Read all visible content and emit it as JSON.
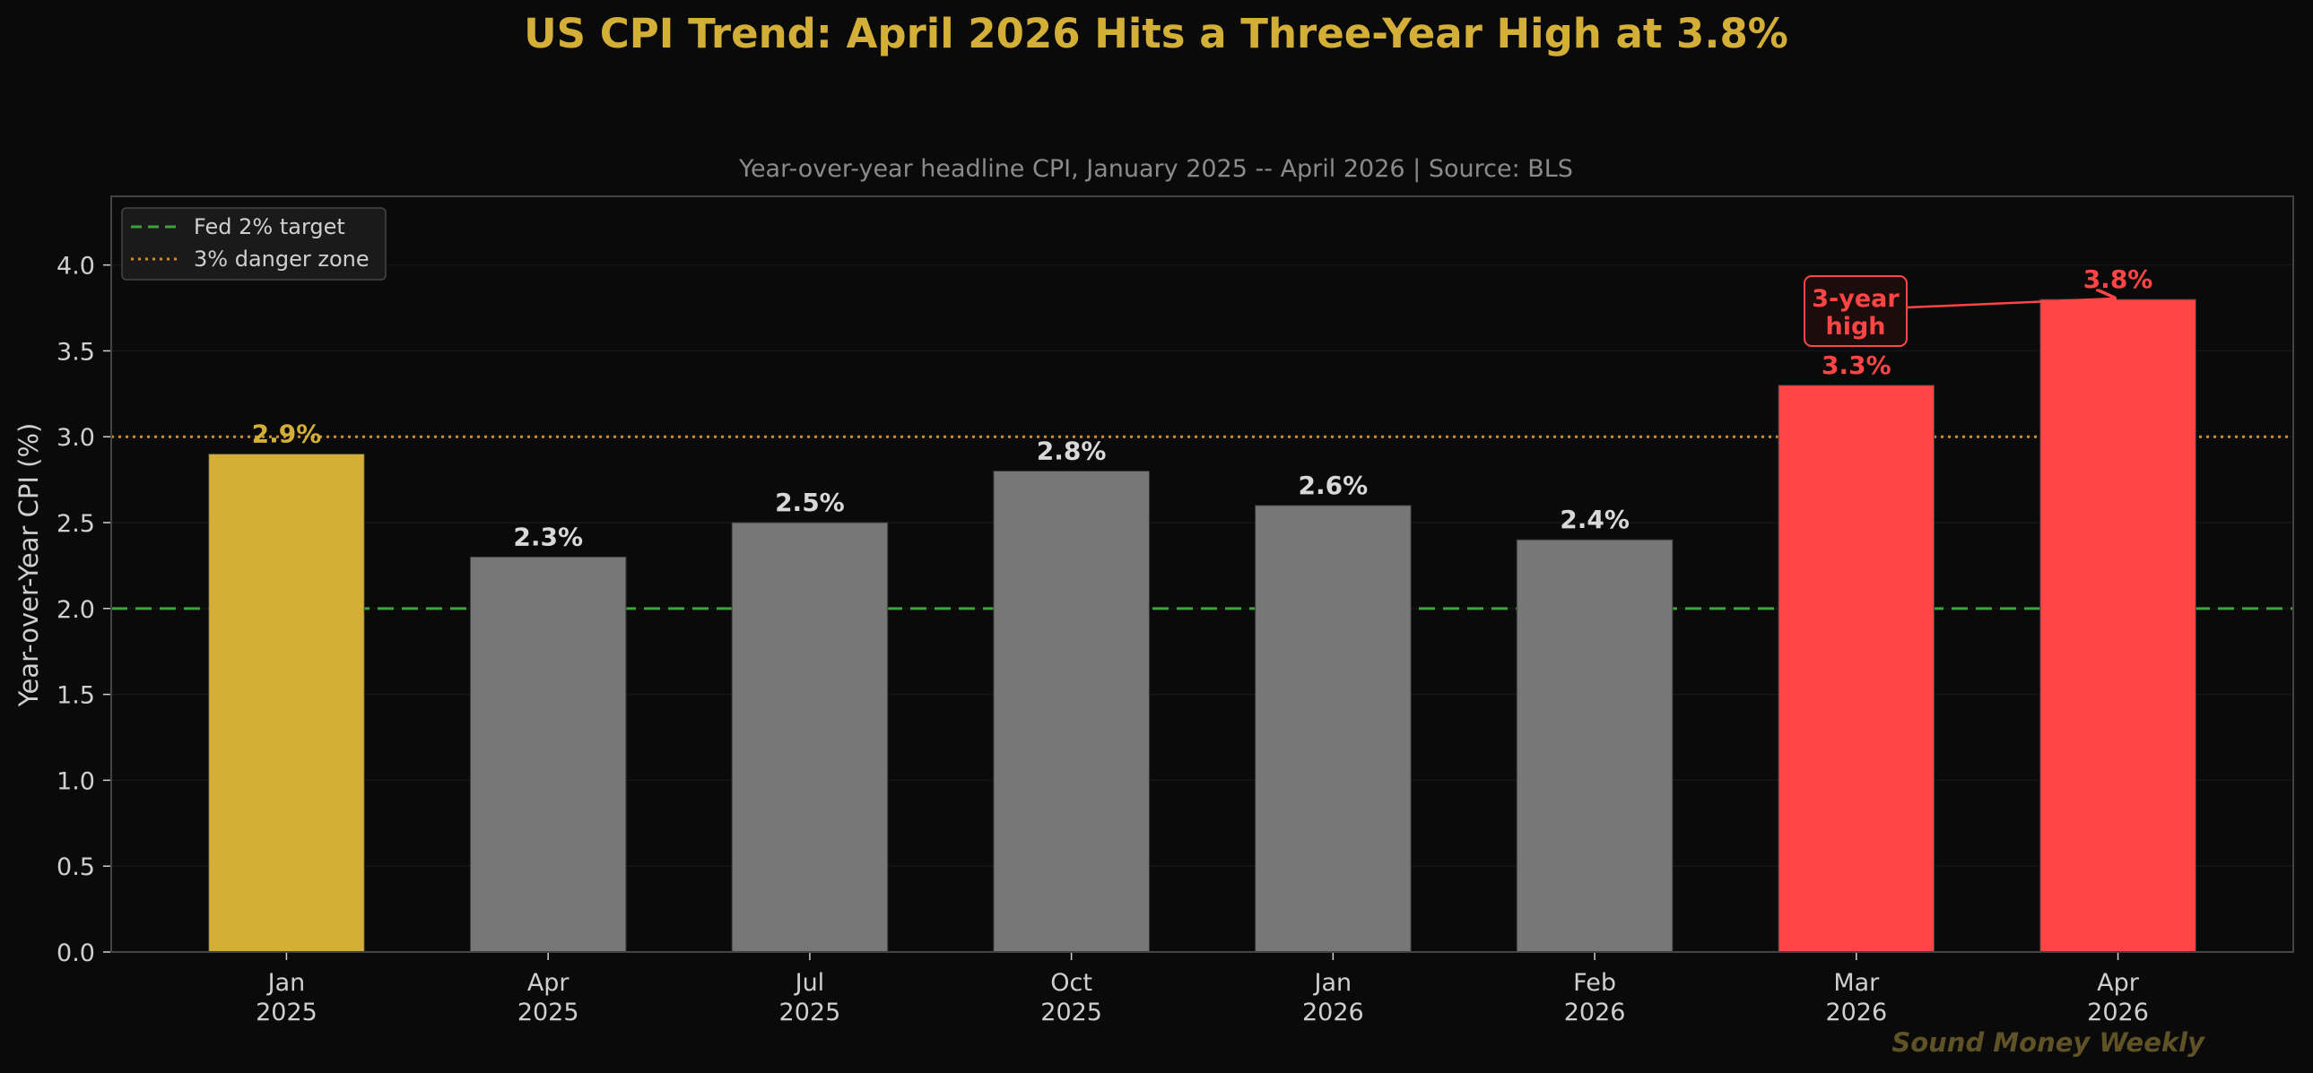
{
  "chart_data": {
    "type": "bar",
    "title": "US CPI Trend: April 2026 Hits a Three-Year High at 3.8%",
    "subtitle": "Year-over-year headline CPI, January 2025 -- April 2026  |  Source: BLS",
    "xlabel": "",
    "ylabel": "Year-over-Year CPI (%)",
    "ylim": [
      0,
      4.4
    ],
    "yticks": [
      0.0,
      0.5,
      1.0,
      1.5,
      2.0,
      2.5,
      3.0,
      3.5,
      4.0
    ],
    "ytick_labels": [
      "0.0",
      "0.5",
      "1.0",
      "1.5",
      "2.0",
      "2.5",
      "3.0",
      "3.5",
      "4.0"
    ],
    "grid": true,
    "categories": [
      {
        "month": "Jan",
        "year": "2025"
      },
      {
        "month": "Apr",
        "year": "2025"
      },
      {
        "month": "Jul",
        "year": "2025"
      },
      {
        "month": "Oct",
        "year": "2025"
      },
      {
        "month": "Jan",
        "year": "2026"
      },
      {
        "month": "Feb",
        "year": "2026"
      },
      {
        "month": "Mar",
        "year": "2026"
      },
      {
        "month": "Apr",
        "year": "2026"
      }
    ],
    "values": [
      2.9,
      2.3,
      2.5,
      2.8,
      2.6,
      2.4,
      3.3,
      3.8
    ],
    "value_labels": [
      "2.9%",
      "2.3%",
      "2.5%",
      "2.8%",
      "2.6%",
      "2.4%",
      "3.3%",
      "3.8%"
    ],
    "bar_colors": [
      "#d4af37",
      "#777777",
      "#777777",
      "#777777",
      "#777777",
      "#777777",
      "#ff4545",
      "#ff4545"
    ],
    "label_colors": [
      "#d4af37",
      "#d8d8d8",
      "#d8d8d8",
      "#d8d8d8",
      "#d8d8d8",
      "#d8d8d8",
      "#ff4545",
      "#ff4545"
    ],
    "reference_lines": [
      {
        "value": 2.0,
        "label": "Fed 2% target",
        "color": "#3aa63a",
        "style": "dashed"
      },
      {
        "value": 3.0,
        "label": "3% danger zone",
        "color": "#c8902a",
        "style": "dotted"
      }
    ],
    "legend_placement": "top-left",
    "annotation": {
      "lines": [
        "3-year",
        "high"
      ],
      "target_index": 7,
      "color": "#ff4545"
    }
  },
  "watermark": "Sound Money Weekly",
  "colors": {
    "background": "#0a0a0a",
    "title": "#d4af37",
    "spine": "#444444",
    "grid": "#161616",
    "watermark": "#5f5226",
    "legend_bg": "#1a1a1a",
    "legend_border": "#444444",
    "annot_bg": "#1c0c0c"
  }
}
